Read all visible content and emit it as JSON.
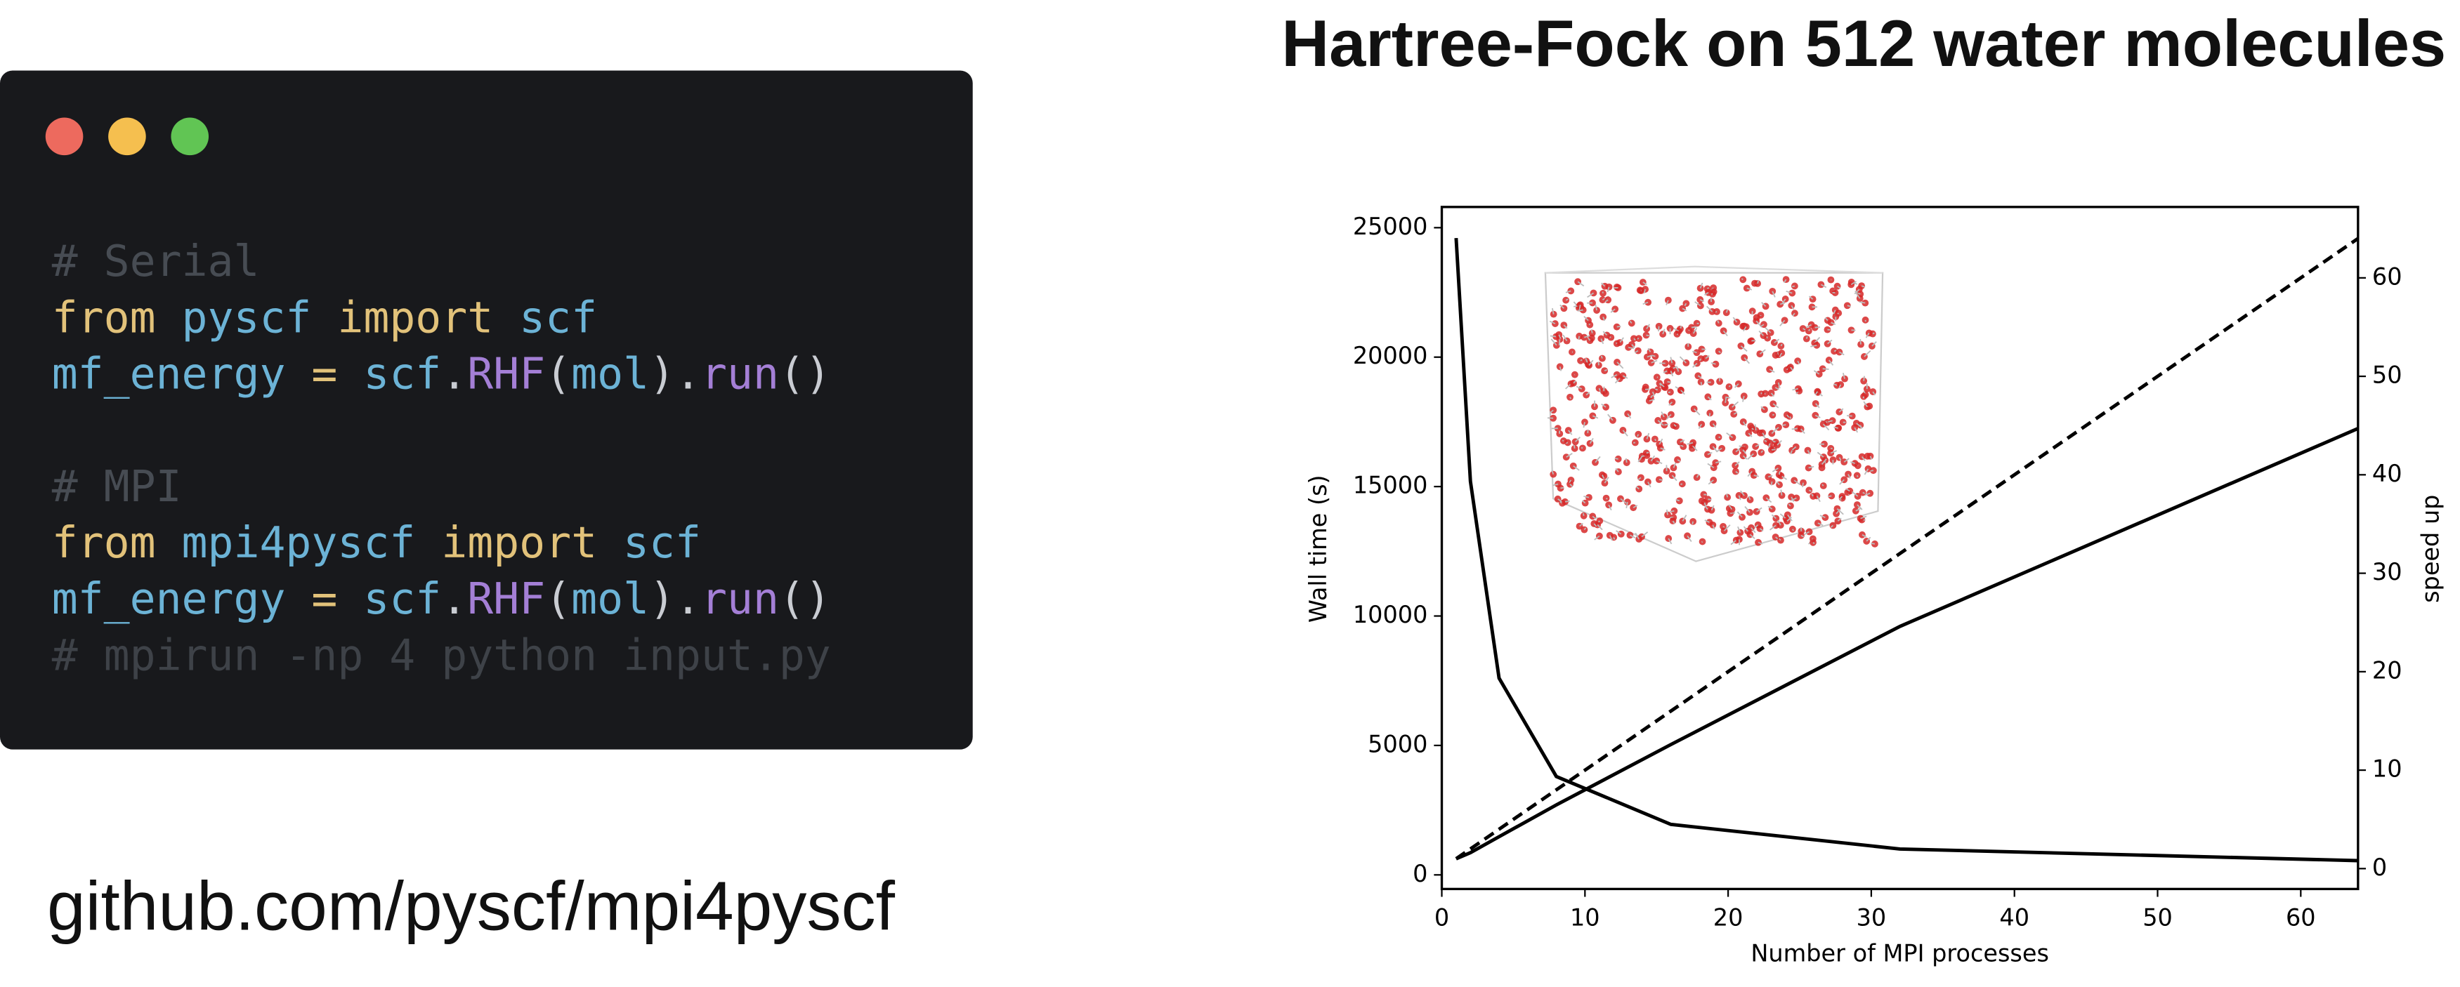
{
  "code": {
    "lines": [
      [
        {
          "text": "# Serial",
          "color": "#474c53"
        }
      ],
      [
        {
          "text": "from ",
          "color": "#e2c27a"
        },
        {
          "text": "pyscf ",
          "color": "#6cb3d6"
        },
        {
          "text": "import ",
          "color": "#e2c27a"
        },
        {
          "text": "scf",
          "color": "#6cb3d6"
        }
      ],
      [
        {
          "text": "mf_energy ",
          "color": "#6cb3d6"
        },
        {
          "text": "= ",
          "color": "#e2c27a"
        },
        {
          "text": "scf",
          "color": "#6cb3d6"
        },
        {
          "text": ".",
          "color": "#c9ccd2"
        },
        {
          "text": "RHF",
          "color": "#a47fd6"
        },
        {
          "text": "(",
          "color": "#c9ccd2"
        },
        {
          "text": "mol",
          "color": "#6cb3d6"
        },
        {
          "text": ").",
          "color": "#c9ccd2"
        },
        {
          "text": "run",
          "color": "#a47fd6"
        },
        {
          "text": "()",
          "color": "#c9ccd2"
        }
      ],
      [],
      [
        {
          "text": "# MPI",
          "color": "#474c53"
        }
      ],
      [
        {
          "text": "from ",
          "color": "#e2c27a"
        },
        {
          "text": "mpi4pyscf ",
          "color": "#6cb3d6"
        },
        {
          "text": "import ",
          "color": "#e2c27a"
        },
        {
          "text": "scf",
          "color": "#6cb3d6"
        }
      ],
      [
        {
          "text": "mf_energy ",
          "color": "#6cb3d6"
        },
        {
          "text": "= ",
          "color": "#e2c27a"
        },
        {
          "text": "scf",
          "color": "#6cb3d6"
        },
        {
          "text": ".",
          "color": "#c9ccd2"
        },
        {
          "text": "RHF",
          "color": "#a47fd6"
        },
        {
          "text": "(",
          "color": "#c9ccd2"
        },
        {
          "text": "mol",
          "color": "#6cb3d6"
        },
        {
          "text": ").",
          "color": "#c9ccd2"
        },
        {
          "text": "run",
          "color": "#a47fd6"
        },
        {
          "text": "()",
          "color": "#c9ccd2"
        }
      ],
      [
        {
          "text": "# mpirun -np 4 python input.py",
          "color": "#3e4248"
        }
      ]
    ]
  },
  "link": "github.com/pyscf/mpi4pyscf",
  "chart_data": {
    "type": "line",
    "title": "Hartree-Fock on 512 water molecules",
    "x_label": "Number of MPI processes",
    "y_label": "Wall time (s)",
    "y2_label": "speed up",
    "x": [
      1,
      2,
      4,
      8,
      16,
      32,
      64
    ],
    "series": [
      {
        "values": [
          24600,
          15200,
          7600,
          3800,
          1950,
          1000,
          550
        ],
        "color": "#000000",
        "axis": "y",
        "dashed": false
      },
      {
        "values": [
          1,
          1.62,
          3.24,
          6.47,
          12.6,
          24.6,
          44.7
        ],
        "color": "#000000",
        "axis": "y2",
        "dashed": false
      },
      {
        "values": [
          1,
          2,
          4,
          8,
          16,
          32,
          64
        ],
        "color": "#000000",
        "axis": "y2",
        "dashed": true
      }
    ],
    "xlim": [
      0,
      64
    ],
    "xticks": [
      0,
      10,
      20,
      30,
      40,
      50,
      60
    ],
    "ylim": [
      -545,
      25800
    ],
    "yticks": [
      0,
      5000,
      10000,
      15000,
      20000,
      25000
    ],
    "y2lim": [
      -2.07,
      67.2
    ],
    "y2ticks": [
      0,
      10,
      20,
      30,
      40,
      50,
      60
    ],
    "grid": false
  }
}
